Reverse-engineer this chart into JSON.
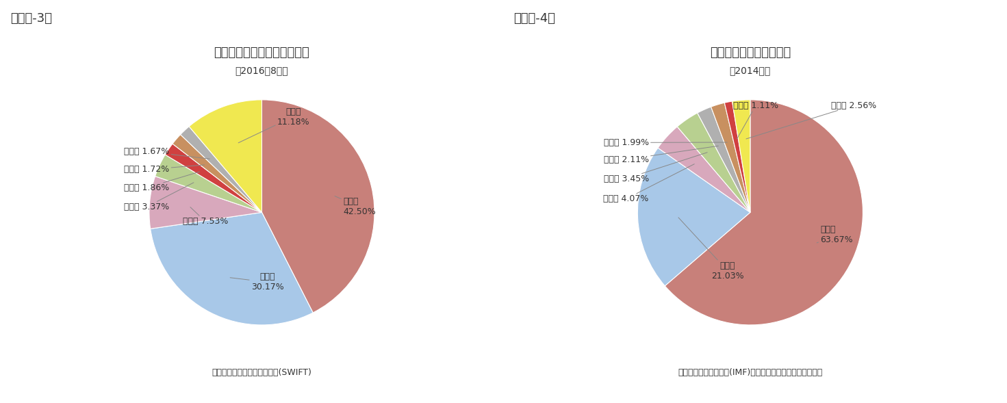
{
  "chart3": {
    "title": "貿易・金融決済額の通貨構成",
    "subtitle": "（2016年8月）",
    "source": "（資料）国際銀行間通信協会(SWIFT)",
    "header": "（図表-3）",
    "slices": [
      {
        "label": "米ドル",
        "value": 42.5,
        "color": "#C8807A"
      },
      {
        "label": "ユーロ",
        "value": 30.17,
        "color": "#A8C8E8"
      },
      {
        "label": "ポンド",
        "value": 7.53,
        "color": "#D8A8BC"
      },
      {
        "label": "日本円",
        "value": 3.37,
        "color": "#B8D090"
      },
      {
        "label": "人民元",
        "value": 1.86,
        "color": "#D04040"
      },
      {
        "label": "加ドル",
        "value": 1.72,
        "color": "#C89060"
      },
      {
        "label": "豪ドル",
        "value": 1.67,
        "color": "#B0B0B0"
      },
      {
        "label": "その他",
        "value": 11.18,
        "color": "#F0E850"
      }
    ]
  },
  "chart4": {
    "title": "外貨準備資産の通貨構成",
    "subtitle": "（2014年）",
    "source": "（資料）国際通貨基金(IMF)による加盟国に対する特別調査",
    "header": "（図表-4）",
    "slices": [
      {
        "label": "米ドル",
        "value": 63.67,
        "color": "#C8807A"
      },
      {
        "label": "ユーロ",
        "value": 21.03,
        "color": "#A8C8E8"
      },
      {
        "label": "ポンド",
        "value": 4.07,
        "color": "#D8A8BC"
      },
      {
        "label": "日本円",
        "value": 3.45,
        "color": "#B8D090"
      },
      {
        "label": "豪ドル",
        "value": 2.11,
        "color": "#B0B0B0"
      },
      {
        "label": "加ドル",
        "value": 1.99,
        "color": "#C89060"
      },
      {
        "label": "人民元",
        "value": 1.11,
        "color": "#D04040"
      },
      {
        "label": "その他",
        "value": 2.56,
        "color": "#F0E850"
      }
    ]
  },
  "background_color": "#FFFFFF",
  "text_color": "#333333",
  "title_fontsize": 13,
  "subtitle_fontsize": 10,
  "label_fontsize": 9,
  "source_fontsize": 9,
  "header_fontsize": 13
}
